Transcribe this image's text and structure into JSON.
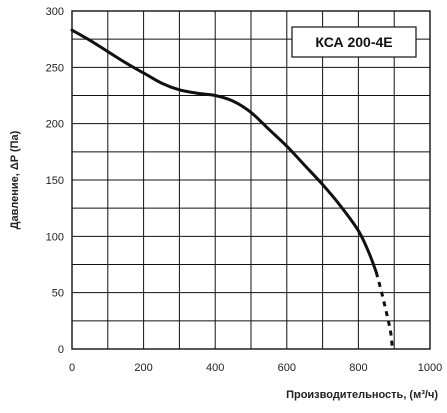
{
  "chart_data": {
    "type": "line",
    "title": "",
    "xlabel": "Производительность, (м³/ч)",
    "ylabel": "Давление, ΔP (Па)",
    "xlim": [
      0,
      1000
    ],
    "ylim": [
      0,
      300
    ],
    "x_ticks": [
      0,
      200,
      400,
      600,
      800,
      1000
    ],
    "y_ticks": [
      0,
      50,
      100,
      150,
      200,
      250,
      300
    ],
    "x_grid_step": 100,
    "y_grid_step": 25,
    "grid": true,
    "legend_position": "top-right",
    "series": [
      {
        "name": "КСА 200-4E",
        "color": "#111111",
        "solid": {
          "x": [
            0,
            50,
            100,
            150,
            200,
            250,
            300,
            350,
            400,
            450,
            500,
            550,
            600,
            650,
            700,
            750,
            800,
            830,
            850
          ],
          "y": [
            283,
            274,
            264,
            254,
            245,
            236,
            230,
            227,
            225,
            220,
            210,
            195,
            180,
            163,
            146,
            127,
            105,
            85,
            68
          ]
        },
        "dashed": {
          "x": [
            850,
            865,
            880,
            890,
            895
          ],
          "y": [
            68,
            50,
            30,
            15,
            0
          ]
        }
      }
    ]
  }
}
